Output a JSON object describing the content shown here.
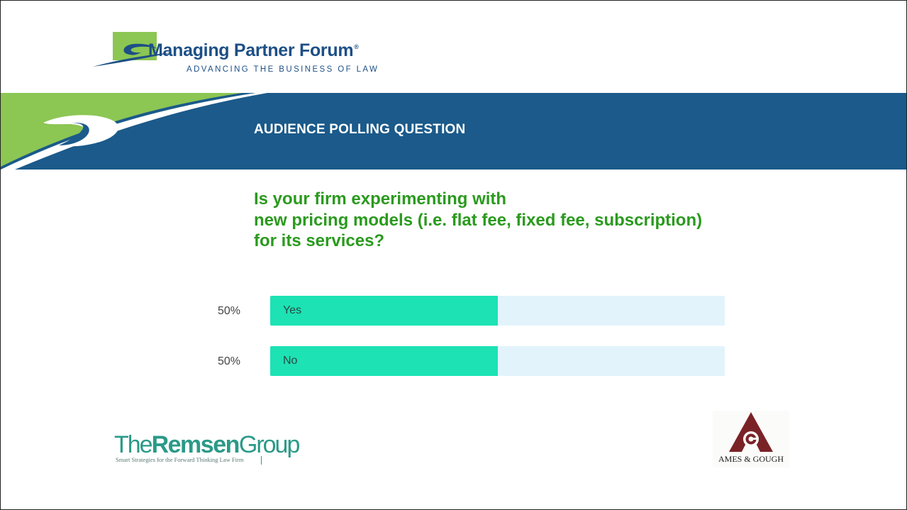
{
  "header": {
    "brand_name": "Managing Partner Forum",
    "brand_reg": "®",
    "brand_tagline": "ADVANCING THE BUSINESS OF LAW"
  },
  "banner": {
    "title": "AUDIENCE POLLING QUESTION"
  },
  "question": {
    "lines": [
      "Is your firm experimenting with",
      "new pricing models (i.e. flat fee, fixed fee, subscription)",
      "for its services?"
    ]
  },
  "poll": {
    "options": [
      {
        "label": "Yes",
        "percent_text": "50%",
        "value": 50
      },
      {
        "label": "No",
        "percent_text": "50%",
        "value": 50
      }
    ]
  },
  "footer": {
    "remsen_light_1": "The",
    "remsen_bold": "Remsen",
    "remsen_light_2": "Group",
    "remsen_tagline": "Smart Strategies for the Forward Thinking Law Firm",
    "ames_text": "AMES & GOUGH"
  },
  "colors": {
    "banner_blue": "#1b5a8a",
    "accent_green": "#8cc653",
    "question_green": "#2a9a1e",
    "poll_fill": "#1ce2b4",
    "poll_track": "#e2f3fb",
    "ames_red": "#7a2326"
  }
}
